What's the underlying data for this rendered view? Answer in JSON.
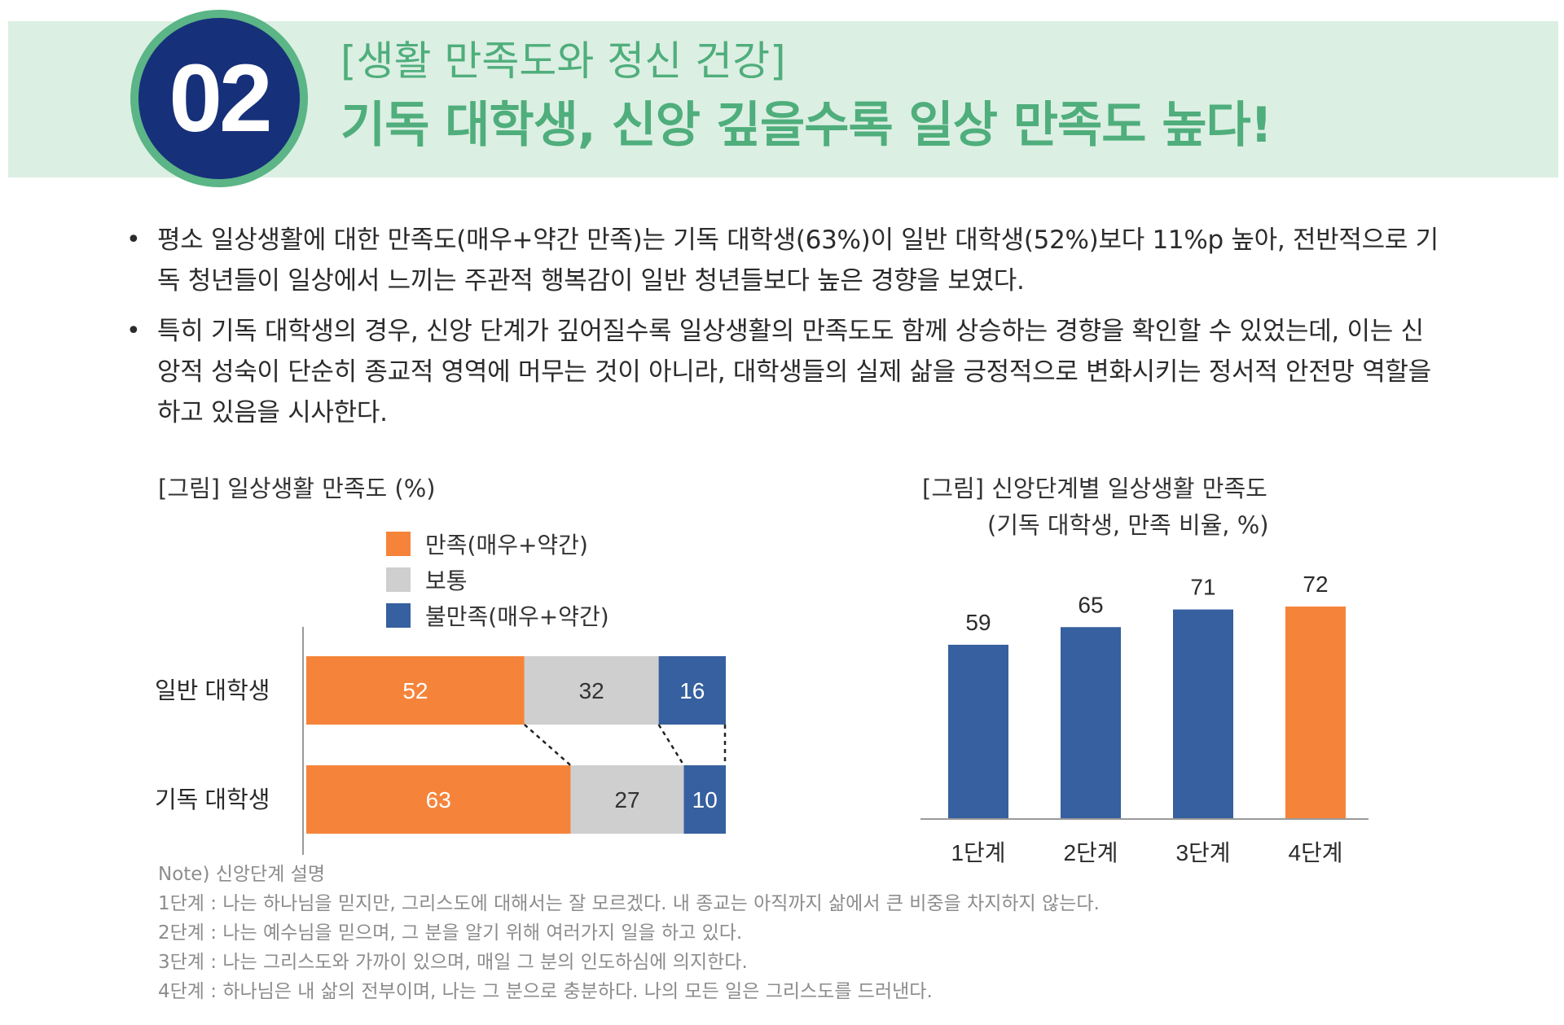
{
  "header": {
    "number": "02",
    "subtitle": "[생활 만족도와 정신 건강]",
    "title": "기독 대학생, 신앙 깊을수록 일상 만족도 높다!"
  },
  "bullets": [
    "평소 일상생활에 대한 만족도(매우+약간 만족)는 기독 대학생(63%)이 일반 대학생(52%)보다 11%p 높아, 전반적으로 기독 청년들이 일상에서 느끼는 주관적 행복감이 일반 청년들보다 높은 경향을 보였다.",
    "특히 기독 대학생의 경우, 신앙 단계가 깊어질수록 일상생활의 만족도도 함께 상승하는 경향을 확인할 수 있었는데, 이는 신앙적 성숙이 단순히 종교적 영역에 머무는 것이 아니라, 대학생들의 실제 삶을 긍정적으로 변화시키는 정서적 안전망 역할을 하고 있음을 시사한다."
  ],
  "figure1": {
    "caption": "[그림] 일상생활 만족도 (%)"
  },
  "figure2": {
    "caption": "[그림] 신앙단계별 일상생활 만족도",
    "subcaption": "(기독 대학생, 만족 비율, %)"
  },
  "colors": {
    "orange": "#f5843a",
    "gray": "#cfcfcf",
    "blue": "#36609f",
    "green": "#4fae7c",
    "navy": "#17307a"
  },
  "chart_data": [
    {
      "type": "bar",
      "orientation": "horizontal",
      "stacked": true,
      "categories": [
        "일반 대학생",
        "기독 대학생"
      ],
      "series": [
        {
          "name": "만족(매우+약간)",
          "values": [
            52,
            63
          ],
          "color": "#f5843a"
        },
        {
          "name": "보통",
          "values": [
            32,
            27
          ],
          "color": "#cfcfcf"
        },
        {
          "name": "불만족(매우+약간)",
          "values": [
            16,
            10
          ],
          "color": "#36609f"
        }
      ],
      "xlim": [
        0,
        100
      ],
      "legend": "top"
    },
    {
      "type": "bar",
      "categories": [
        "1단계",
        "2단계",
        "3단계",
        "4단계"
      ],
      "values": [
        59,
        65,
        71,
        72
      ],
      "colors": [
        "#36609f",
        "#36609f",
        "#36609f",
        "#f5843a"
      ],
      "ylim": [
        0,
        72
      ]
    }
  ],
  "note": {
    "title": "Note) 신앙단계 설명",
    "lines": [
      "1단계 : 나는 하나님을 믿지만, 그리스도에 대해서는 잘 모르겠다. 내 종교는 아직까지 삶에서 큰 비중을 차지하지 않는다.",
      "2단계 : 나는 예수님을 믿으며, 그 분을 알기 위해 여러가지 일을 하고 있다.",
      "3단계 : 나는 그리스도와 가까이 있으며, 매일 그 분의 인도하심에 의지한다.",
      "4단계 : 하나님은 내 삶의 전부이며, 나는 그 분으로 충분하다. 나의 모든 일은 그리스도를 드러낸다."
    ]
  }
}
